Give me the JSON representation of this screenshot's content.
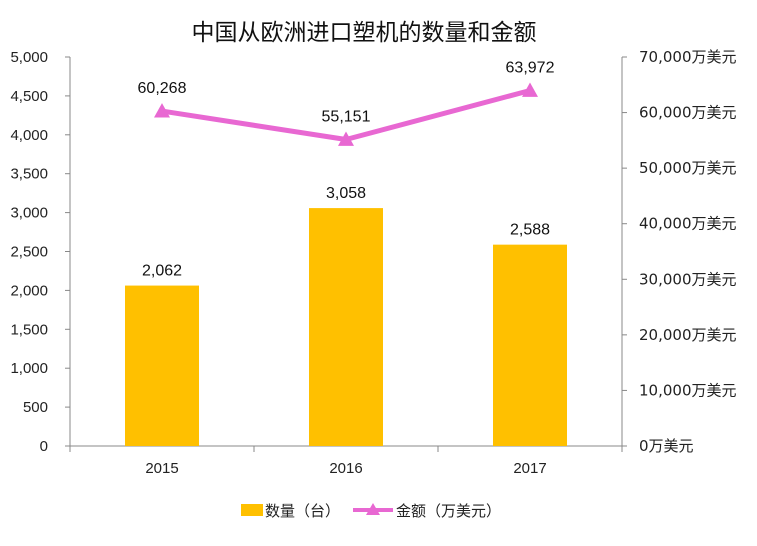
{
  "chart_data": {
    "type": "bar",
    "title": "中国从欧洲进口塑机的数量和金额",
    "categories": [
      "2015",
      "2016",
      "2017"
    ],
    "series": [
      {
        "name": "数量（台）",
        "type": "bar",
        "axis": "left",
        "values": [
          2062,
          3058,
          2588
        ],
        "value_labels": [
          "2,062",
          "3,058",
          "2,588"
        ],
        "color": "#FFC000"
      },
      {
        "name": "金额（万美元）",
        "type": "line",
        "axis": "right",
        "marker": "triangle",
        "values": [
          60268,
          55151,
          63972
        ],
        "value_labels": [
          "60,268",
          "55,151",
          "63,972"
        ],
        "color": "#E868D2"
      }
    ],
    "y_left": {
      "ylim": [
        0,
        5000
      ],
      "ticks": [
        0,
        500,
        1000,
        1500,
        2000,
        2500,
        3000,
        3500,
        4000,
        4500,
        5000
      ],
      "tick_labels": [
        "0",
        "500",
        "1,000",
        "1,500",
        "2,000",
        "2,500",
        "3,000",
        "3,500",
        "4,000",
        "4,500",
        "5,000"
      ]
    },
    "y_right": {
      "ylim": [
        0,
        70000
      ],
      "ticks": [
        0,
        10000,
        20000,
        30000,
        40000,
        50000,
        60000,
        70000
      ],
      "tick_labels": [
        "0万美元",
        "10,000万美元",
        "20,000万美元",
        "30,000万美元",
        "40,000万美元",
        "50,000万美元",
        "60,000万美元",
        "70,000万美元"
      ]
    },
    "grid": false,
    "legend": "bottom"
  }
}
